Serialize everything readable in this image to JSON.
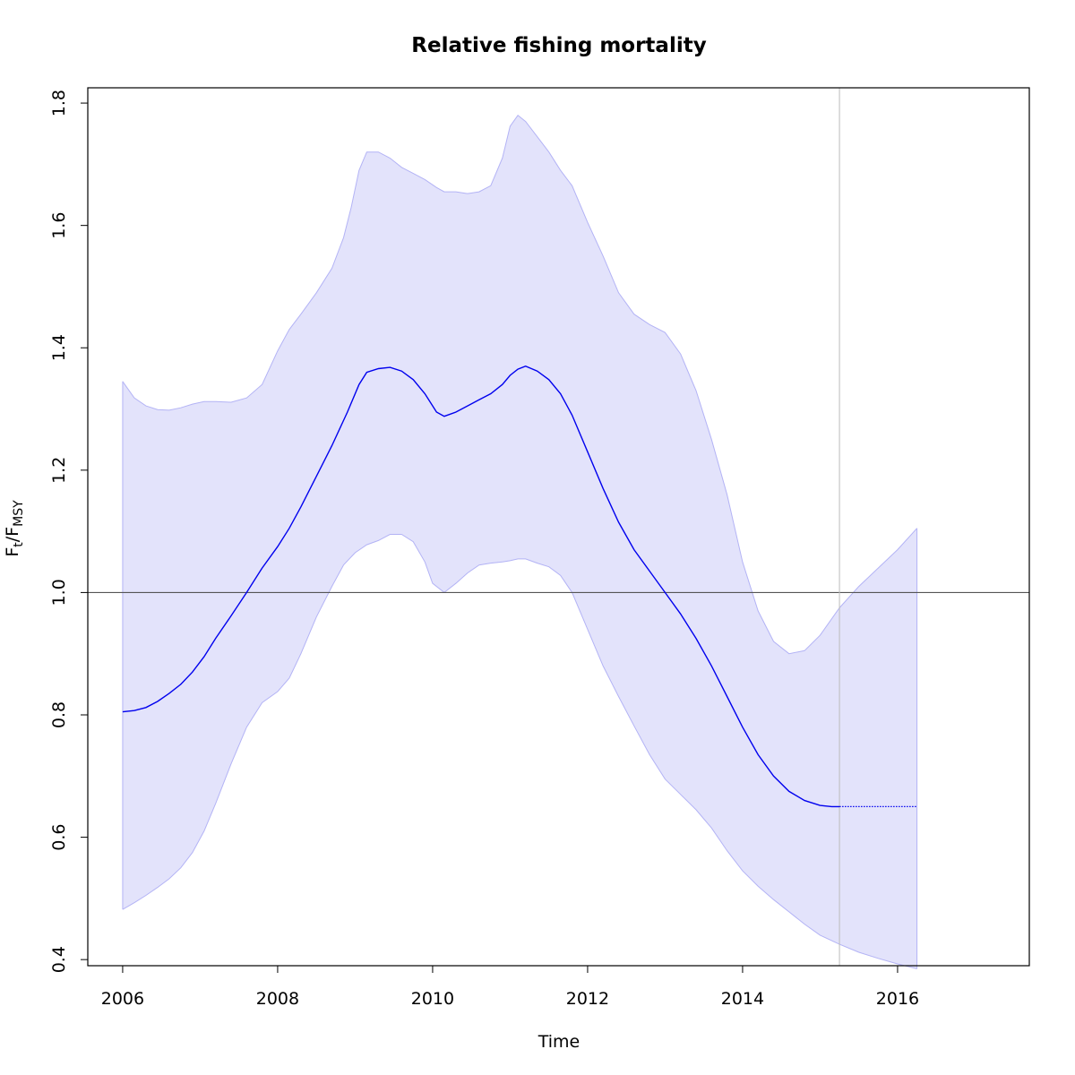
{
  "chart_data": {
    "type": "line",
    "title": "Relative fishing mortality",
    "xlabel": "Time",
    "ylabel": {
      "main": "F",
      "sub1": "t",
      "sep": "/F",
      "sub2": "MSY"
    },
    "xlim": [
      2005.55,
      2017.7
    ],
    "ylim": [
      0.39,
      1.825
    ],
    "xticks": [
      2006,
      2008,
      2010,
      2012,
      2014,
      2016
    ],
    "xtick_labels": [
      "2006",
      "2008",
      "2010",
      "2012",
      "2014",
      "2016"
    ],
    "yticks": [
      0.4,
      0.6,
      0.8,
      1.0,
      1.2,
      1.4,
      1.6,
      1.8
    ],
    "ytick_labels": [
      "0.4",
      "0.6",
      "0.8",
      "1.0",
      "1.2",
      "1.4",
      "1.6",
      "1.8"
    ],
    "reference_hline": 1.0,
    "reference_vline": 2015.25,
    "colors": {
      "line": "#0000ee",
      "band_fill": "#e3e3fb",
      "band_edge": "#b3b3f5",
      "hline": "#555555",
      "vline": "#bbbbbb"
    },
    "series": [
      {
        "role": "estimate",
        "x": [
          2006.0,
          2006.15,
          2006.3,
          2006.45,
          2006.6,
          2006.75,
          2006.9,
          2007.05,
          2007.2,
          2007.4,
          2007.6,
          2007.8,
          2008.0,
          2008.15,
          2008.3,
          2008.5,
          2008.7,
          2008.9,
          2009.05,
          2009.15,
          2009.3,
          2009.45,
          2009.6,
          2009.75,
          2009.9,
          2010.05,
          2010.15,
          2010.3,
          2010.45,
          2010.6,
          2010.75,
          2010.9,
          2011.0,
          2011.1,
          2011.2,
          2011.35,
          2011.5,
          2011.65,
          2011.8,
          2012.0,
          2012.2,
          2012.4,
          2012.6,
          2012.8,
          2013.0,
          2013.2,
          2013.4,
          2013.6,
          2013.8,
          2014.0,
          2014.2,
          2014.4,
          2014.6,
          2014.8,
          2015.0,
          2015.15,
          2015.25
        ],
        "y": [
          0.805,
          0.807,
          0.812,
          0.822,
          0.835,
          0.85,
          0.87,
          0.895,
          0.925,
          0.962,
          1.0,
          1.04,
          1.075,
          1.105,
          1.14,
          1.19,
          1.24,
          1.295,
          1.34,
          1.36,
          1.366,
          1.368,
          1.362,
          1.348,
          1.325,
          1.295,
          1.288,
          1.295,
          1.305,
          1.315,
          1.325,
          1.34,
          1.355,
          1.365,
          1.37,
          1.362,
          1.348,
          1.325,
          1.29,
          1.23,
          1.17,
          1.115,
          1.07,
          1.035,
          1.0,
          0.965,
          0.925,
          0.88,
          0.83,
          0.78,
          0.735,
          0.7,
          0.675,
          0.66,
          0.652,
          0.65,
          0.65
        ]
      },
      {
        "role": "projection",
        "x": [
          2015.25,
          2016.25
        ],
        "y": [
          0.65,
          0.65
        ]
      },
      {
        "role": "upper_bound",
        "x": [
          2006.0,
          2006.15,
          2006.3,
          2006.45,
          2006.6,
          2006.75,
          2006.9,
          2007.05,
          2007.2,
          2007.4,
          2007.6,
          2007.8,
          2008.0,
          2008.15,
          2008.3,
          2008.5,
          2008.7,
          2008.85,
          2008.95,
          2009.05,
          2009.15,
          2009.3,
          2009.45,
          2009.6,
          2009.75,
          2009.9,
          2010.05,
          2010.15,
          2010.3,
          2010.45,
          2010.6,
          2010.75,
          2010.9,
          2011.0,
          2011.1,
          2011.2,
          2011.35,
          2011.5,
          2011.65,
          2011.8,
          2012.0,
          2012.2,
          2012.4,
          2012.6,
          2012.8,
          2013.0,
          2013.2,
          2013.4,
          2013.6,
          2013.8,
          2014.0,
          2014.2,
          2014.4,
          2014.6,
          2014.8,
          2015.0,
          2015.25,
          2015.5,
          2015.75,
          2016.0,
          2016.25
        ],
        "y": [
          1.345,
          1.318,
          1.305,
          1.299,
          1.298,
          1.302,
          1.308,
          1.312,
          1.312,
          1.311,
          1.318,
          1.34,
          1.395,
          1.43,
          1.455,
          1.49,
          1.53,
          1.58,
          1.63,
          1.69,
          1.72,
          1.72,
          1.71,
          1.695,
          1.685,
          1.675,
          1.662,
          1.655,
          1.655,
          1.652,
          1.655,
          1.665,
          1.71,
          1.762,
          1.78,
          1.77,
          1.745,
          1.72,
          1.69,
          1.665,
          1.605,
          1.55,
          1.49,
          1.455,
          1.438,
          1.425,
          1.39,
          1.33,
          1.25,
          1.16,
          1.05,
          0.97,
          0.92,
          0.9,
          0.905,
          0.93,
          0.975,
          1.01,
          1.04,
          1.07,
          1.105
        ]
      },
      {
        "role": "lower_bound",
        "x": [
          2006.0,
          2006.15,
          2006.3,
          2006.45,
          2006.6,
          2006.75,
          2006.9,
          2007.05,
          2007.2,
          2007.4,
          2007.6,
          2007.8,
          2008.0,
          2008.15,
          2008.3,
          2008.5,
          2008.7,
          2008.85,
          2009.0,
          2009.15,
          2009.3,
          2009.45,
          2009.6,
          2009.75,
          2009.9,
          2010.0,
          2010.15,
          2010.3,
          2010.45,
          2010.6,
          2010.75,
          2010.9,
          2011.0,
          2011.1,
          2011.2,
          2011.35,
          2011.5,
          2011.65,
          2011.8,
          2012.0,
          2012.2,
          2012.4,
          2012.6,
          2012.8,
          2013.0,
          2013.2,
          2013.4,
          2013.6,
          2013.8,
          2014.0,
          2014.2,
          2014.4,
          2014.6,
          2014.8,
          2015.0,
          2015.25,
          2015.5,
          2015.75,
          2016.0,
          2016.25
        ],
        "y": [
          0.482,
          0.493,
          0.505,
          0.518,
          0.532,
          0.55,
          0.575,
          0.61,
          0.655,
          0.72,
          0.78,
          0.82,
          0.838,
          0.86,
          0.9,
          0.96,
          1.01,
          1.045,
          1.065,
          1.078,
          1.085,
          1.095,
          1.095,
          1.083,
          1.05,
          1.015,
          1.0,
          1.015,
          1.032,
          1.045,
          1.048,
          1.05,
          1.052,
          1.055,
          1.055,
          1.048,
          1.042,
          1.028,
          1.0,
          0.94,
          0.88,
          0.83,
          0.782,
          0.735,
          0.695,
          0.67,
          0.645,
          0.615,
          0.578,
          0.545,
          0.52,
          0.498,
          0.478,
          0.458,
          0.44,
          0.425,
          0.412,
          0.402,
          0.393,
          0.385
        ]
      }
    ]
  }
}
